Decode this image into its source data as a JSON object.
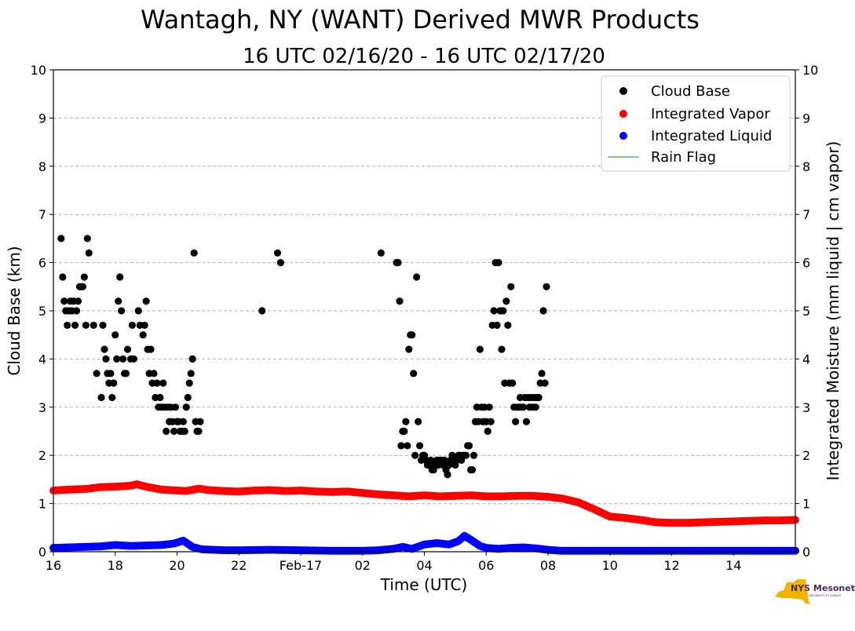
{
  "chart_data": {
    "type": "scatter",
    "title": "Wantagh, NY (WANT) Derived MWR Products",
    "subtitle": "16 UTC 02/16/20 - 16 UTC 02/17/20",
    "xlabel": "Time (UTC)",
    "ylabel": "Cloud Base (km)",
    "ylabel_right": "Integrated Moisture (mm liquid | cm vapor)",
    "xlim": [
      16,
      40
    ],
    "ylim": [
      0,
      10
    ],
    "ylim_right": [
      0,
      10
    ],
    "x_ticks": [
      {
        "v": 16,
        "label": "16"
      },
      {
        "v": 18,
        "label": "18"
      },
      {
        "v": 20,
        "label": "20"
      },
      {
        "v": 22,
        "label": "22"
      },
      {
        "v": 24,
        "label": "Feb-17"
      },
      {
        "v": 26,
        "label": "02"
      },
      {
        "v": 28,
        "label": "04"
      },
      {
        "v": 30,
        "label": "06"
      },
      {
        "v": 32,
        "label": "08"
      },
      {
        "v": 34,
        "label": "10"
      },
      {
        "v": 36,
        "label": "12"
      },
      {
        "v": 38,
        "label": "14"
      }
    ],
    "y_ticks": [
      "0",
      "1",
      "2",
      "3",
      "4",
      "5",
      "6",
      "7",
      "8",
      "9",
      "10"
    ],
    "grid": "horizontal-dashed",
    "legend_position": "top-right",
    "legend": [
      "Cloud Base",
      "Integrated Vapor",
      "Integrated Liquid",
      "Rain Flag"
    ],
    "colors": {
      "cloud_base": "#000000",
      "vapor": "#ff0000",
      "liquid": "#0000ff",
      "rain_flag": "#5cb85c"
    },
    "series": [
      {
        "name": "Cloud Base",
        "key": "cloud_base",
        "x": [
          16.25,
          16.3,
          16.35,
          16.4,
          16.45,
          16.5,
          16.55,
          16.6,
          16.65,
          16.7,
          16.75,
          16.8,
          16.85,
          16.9,
          16.95,
          17.0,
          17.05,
          17.1,
          17.15,
          17.3,
          17.4,
          17.55,
          17.6,
          17.65,
          17.7,
          17.75,
          17.8,
          17.85,
          17.9,
          17.95,
          18.0,
          18.05,
          18.1,
          18.15,
          18.2,
          18.25,
          18.3,
          18.35,
          18.4,
          18.5,
          18.55,
          18.6,
          18.75,
          18.8,
          18.9,
          18.95,
          19.0,
          19.05,
          19.1,
          19.15,
          19.2,
          19.25,
          19.3,
          19.35,
          19.4,
          19.45,
          19.5,
          19.55,
          19.6,
          19.65,
          19.7,
          19.75,
          19.8,
          19.85,
          19.9,
          19.95,
          20.0,
          20.05,
          20.1,
          20.15,
          20.2,
          20.25,
          20.3,
          20.35,
          20.4,
          20.45,
          20.5,
          20.55,
          20.6,
          20.65,
          20.7,
          20.75,
          22.75,
          23.25,
          23.35,
          26.6,
          27.1,
          27.15,
          27.2,
          27.25,
          27.3,
          27.35,
          27.4,
          27.45,
          27.5,
          27.55,
          27.6,
          27.65,
          27.7,
          27.75,
          27.8,
          27.85,
          27.9,
          27.95,
          28.0,
          28.05,
          28.1,
          28.15,
          28.2,
          28.25,
          28.3,
          28.35,
          28.4,
          28.45,
          28.5,
          28.55,
          28.6,
          28.65,
          28.7,
          28.75,
          28.8,
          28.85,
          28.9,
          28.95,
          29.0,
          29.05,
          29.1,
          29.15,
          29.2,
          29.25,
          29.3,
          29.35,
          29.4,
          29.45,
          29.5,
          29.55,
          29.6,
          29.65,
          29.7,
          29.75,
          29.8,
          29.85,
          29.9,
          29.95,
          30.0,
          30.05,
          30.1,
          30.15,
          30.2,
          30.25,
          30.3,
          30.35,
          30.4,
          30.45,
          30.5,
          30.55,
          30.6,
          30.65,
          30.7,
          30.75,
          30.8,
          30.85,
          30.9,
          30.95,
          31.0,
          31.05,
          31.1,
          31.15,
          31.2,
          31.25,
          31.3,
          31.35,
          31.4,
          31.45,
          31.5,
          31.55,
          31.6,
          31.65,
          31.7,
          31.75,
          31.8,
          31.85,
          31.9,
          31.95
        ],
        "values": [
          6.5,
          5.7,
          5.2,
          5.0,
          4.7,
          5.0,
          5.2,
          5.0,
          5.2,
          4.7,
          5.0,
          5.2,
          5.5,
          5.5,
          5.5,
          5.7,
          4.7,
          6.5,
          6.2,
          4.7,
          3.7,
          3.2,
          4.7,
          4.2,
          4.0,
          3.7,
          3.5,
          3.7,
          3.2,
          3.5,
          4.5,
          4.0,
          5.2,
          5.7,
          5.0,
          4.0,
          3.7,
          3.7,
          4.2,
          4.0,
          4.7,
          4.0,
          5.0,
          4.7,
          4.5,
          4.7,
          5.2,
          4.2,
          3.7,
          4.2,
          3.5,
          3.7,
          3.2,
          3.5,
          3.0,
          3.2,
          3.0,
          3.5,
          3.0,
          2.5,
          3.0,
          2.7,
          3.0,
          2.7,
          2.5,
          3.0,
          2.7,
          2.7,
          2.5,
          2.5,
          2.7,
          2.5,
          3.0,
          3.2,
          3.5,
          3.7,
          4.0,
          6.2,
          2.7,
          2.5,
          2.5,
          2.7,
          5.0,
          6.2,
          6.0,
          6.2,
          6.0,
          6.0,
          5.2,
          2.2,
          2.5,
          2.5,
          2.7,
          2.2,
          4.2,
          4.5,
          4.5,
          3.7,
          2.0,
          5.7,
          2.7,
          2.2,
          1.9,
          2.0,
          2.0,
          1.9,
          1.8,
          1.8,
          1.9,
          1.7,
          1.7,
          1.8,
          1.9,
          1.8,
          1.9,
          1.9,
          1.8,
          1.9,
          1.7,
          1.6,
          1.8,
          1.9,
          2.0,
          1.9,
          1.8,
          1.9,
          2.0,
          2.0,
          1.9,
          2.0,
          2.0,
          2.0,
          2.2,
          2.2,
          1.7,
          1.7,
          2.0,
          2.7,
          3.0,
          2.7,
          4.2,
          3.0,
          2.7,
          3.0,
          2.7,
          2.5,
          3.0,
          2.7,
          4.7,
          5.0,
          6.0,
          4.7,
          6.0,
          5.0,
          4.2,
          5.0,
          3.5,
          5.2,
          4.7,
          3.5,
          5.5,
          3.5,
          3.0,
          2.7,
          3.0,
          3.0,
          3.2,
          3.0,
          3.0,
          3.2,
          2.7,
          3.2,
          3.0,
          3.2,
          3.0,
          3.2,
          3.0,
          3.2,
          3.2,
          3.5,
          3.7,
          5.0,
          3.5,
          5.5
        ]
      },
      {
        "name": "Integrated Vapor",
        "key": "vapor",
        "x": [
          16.0,
          16.5,
          17.0,
          17.5,
          18.0,
          18.5,
          18.7,
          19.0,
          19.5,
          20.0,
          20.3,
          20.7,
          21.0,
          21.5,
          22.0,
          22.5,
          23.0,
          23.5,
          24.0,
          24.5,
          25.0,
          25.5,
          26.0,
          26.5,
          27.0,
          27.5,
          28.0,
          28.5,
          29.0,
          29.5,
          30.0,
          30.5,
          31.0,
          31.5,
          32.0,
          32.5,
          33.0,
          33.5,
          34.0,
          34.5,
          35.0,
          35.5,
          36.0,
          36.5,
          37.0,
          37.5,
          38.0,
          38.5,
          39.0,
          39.5,
          40.0
        ],
        "values": [
          1.27,
          1.29,
          1.3,
          1.34,
          1.35,
          1.37,
          1.4,
          1.35,
          1.29,
          1.27,
          1.26,
          1.31,
          1.28,
          1.26,
          1.25,
          1.27,
          1.28,
          1.26,
          1.27,
          1.25,
          1.24,
          1.25,
          1.22,
          1.19,
          1.17,
          1.15,
          1.17,
          1.15,
          1.16,
          1.17,
          1.15,
          1.15,
          1.16,
          1.16,
          1.14,
          1.1,
          1.02,
          0.88,
          0.73,
          0.7,
          0.66,
          0.61,
          0.6,
          0.6,
          0.61,
          0.62,
          0.63,
          0.64,
          0.65,
          0.65,
          0.66
        ]
      },
      {
        "name": "Integrated Liquid",
        "key": "liquid",
        "x": [
          16.0,
          16.5,
          17.0,
          17.5,
          18.0,
          18.5,
          19.0,
          19.5,
          19.9,
          20.2,
          20.5,
          20.8,
          21.2,
          21.6,
          22.0,
          23.0,
          24.0,
          25.0,
          26.0,
          26.5,
          27.0,
          27.3,
          27.6,
          28.0,
          28.4,
          28.8,
          29.1,
          29.3,
          29.5,
          29.8,
          30.0,
          30.4,
          30.8,
          31.2,
          31.6,
          32.0,
          32.4,
          33.0,
          34.0,
          35.0,
          36.0,
          37.0,
          38.0,
          39.0,
          40.0
        ],
        "values": [
          0.08,
          0.09,
          0.1,
          0.11,
          0.14,
          0.12,
          0.13,
          0.14,
          0.17,
          0.23,
          0.1,
          0.05,
          0.04,
          0.03,
          0.03,
          0.04,
          0.03,
          0.02,
          0.02,
          0.03,
          0.06,
          0.1,
          0.06,
          0.15,
          0.18,
          0.15,
          0.22,
          0.33,
          0.25,
          0.12,
          0.08,
          0.06,
          0.08,
          0.09,
          0.07,
          0.04,
          0.02,
          0.02,
          0.02,
          0.02,
          0.02,
          0.02,
          0.02,
          0.02,
          0.02
        ]
      },
      {
        "name": "Rain Flag",
        "key": "rain_flag",
        "x": [],
        "values": []
      }
    ]
  },
  "logo": {
    "text": "NYS Mesonet",
    "sub": "UNIVERSITY AT ALBANY"
  }
}
